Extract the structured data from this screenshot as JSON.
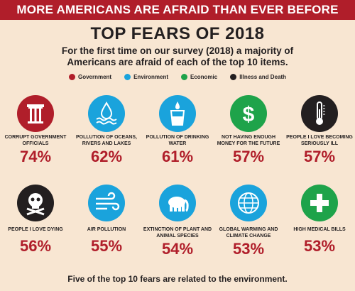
{
  "banner": "MORE AMERICANS ARE AFRAID THAN EVER BEFORE",
  "footer": "Five of the top 10 fears are related to the environment.",
  "colors": {
    "government": "#b01e2a",
    "environment": "#1aa3dc",
    "economic": "#1ea34a",
    "illness": "#231f20",
    "accent": "#b01e2a",
    "background": "#f8e6d2"
  },
  "legend": [
    {
      "label": "Government",
      "color": "#b01e2a"
    },
    {
      "label": "Environment",
      "color": "#1aa3dc"
    },
    {
      "label": "Economic",
      "color": "#1ea34a"
    },
    {
      "label": "Illness and Death",
      "color": "#231f20"
    }
  ],
  "chart_data": {
    "type": "table",
    "title": "TOP FEARS OF 2018",
    "subtitle": "For the first time on our survey (2018) a majority of Americans are afraid of each of the top 10 items.",
    "unit": "%",
    "items": [
      {
        "label": "CORRUPT GOVERNMENT OFFICIALS",
        "value": 74,
        "display": "74%",
        "category": "Government",
        "icon": "column-icon"
      },
      {
        "label": "POLLUTION OF OCEANS, RIVERS AND LAKES",
        "value": 62,
        "display": "62%",
        "category": "Environment",
        "icon": "water-drop-icon"
      },
      {
        "label": "POLLUTION OF DRINKING WATER",
        "value": 61,
        "display": "61%",
        "category": "Environment",
        "icon": "glass-icon"
      },
      {
        "label": "NOT HAVING ENOUGH MONEY FOR THE FUTURE",
        "value": 57,
        "display": "57%",
        "category": "Economic",
        "icon": "dollar-icon"
      },
      {
        "label": "PEOPLE I LOVE BECOMING SERIOUSLY ILL",
        "value": 57,
        "display": "57%",
        "category": "Illness and Death",
        "icon": "thermometer-icon"
      },
      {
        "label": "PEOPLE I LOVE DYING",
        "value": 56,
        "display": "56%",
        "category": "Illness and Death",
        "icon": "skull-icon"
      },
      {
        "label": "AIR POLLUTION",
        "value": 55,
        "display": "55%",
        "category": "Environment",
        "icon": "wind-icon"
      },
      {
        "label": "EXTINCTION OF PLANT AND ANIMAL SPECIES",
        "value": 54,
        "display": "54%",
        "category": "Environment",
        "icon": "elephant-icon"
      },
      {
        "label": "GLOBAL WARMING AND CLIMATE CHANGE",
        "value": 53,
        "display": "53%",
        "category": "Environment",
        "icon": "globe-icon"
      },
      {
        "label": "HIGH MEDICAL BILLS",
        "value": 53,
        "display": "53%",
        "category": "Economic",
        "icon": "medical-cross-icon"
      }
    ]
  }
}
